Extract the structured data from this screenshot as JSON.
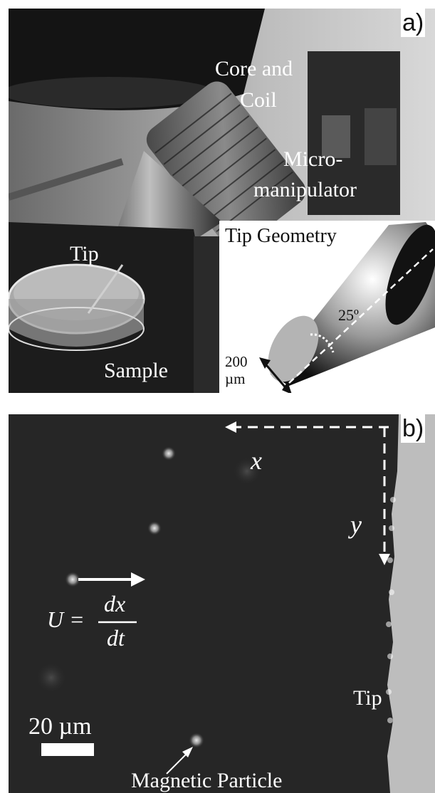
{
  "panel_a": {
    "letter": "a)",
    "labels": {
      "core_and": "Core and",
      "coil": "Coil",
      "micro": "Micro-",
      "manipulator": "manipulator",
      "tip": "Tip",
      "sample": "Sample"
    },
    "inset": {
      "title": "Tip Geometry",
      "angle": "25º",
      "size_value": "200",
      "size_unit": "µm"
    }
  },
  "panel_b": {
    "letter": "b)",
    "axis_x": "x",
    "axis_y": "y",
    "velocity_lhs": "U =",
    "velocity_num": "dx",
    "velocity_den": "dt",
    "tip_label": "Tip",
    "scale_label": "20 µm",
    "particle_label": "Magnetic Particle"
  }
}
